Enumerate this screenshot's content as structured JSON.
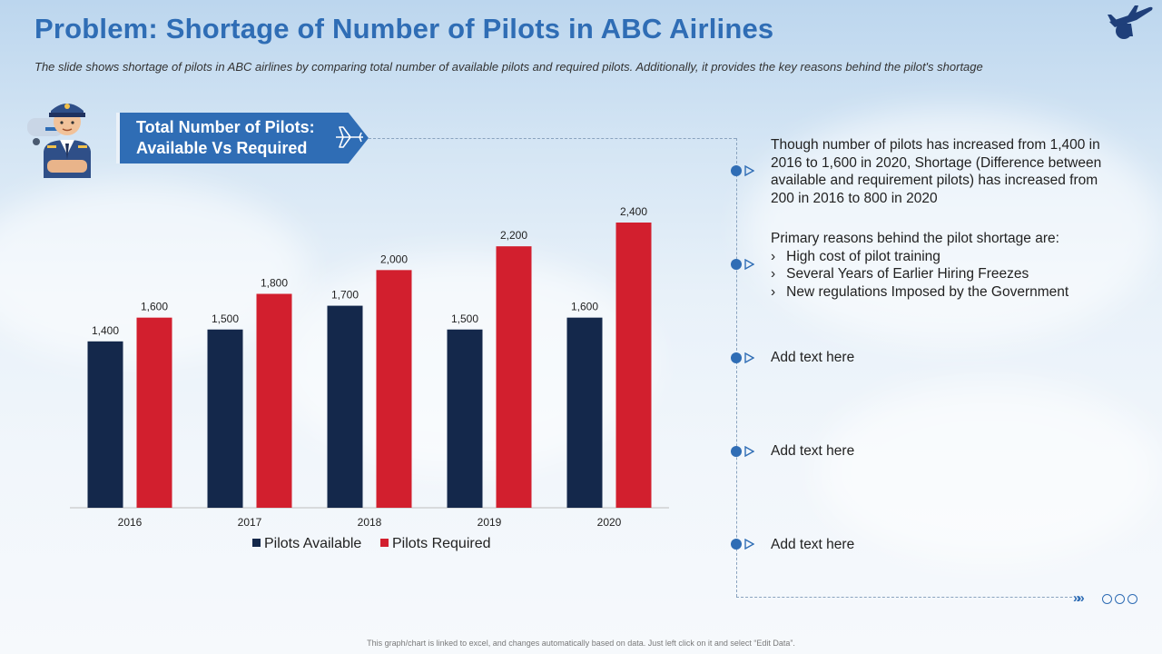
{
  "header": {
    "title": "Problem: Shortage of Number of Pilots in ABC Airlines",
    "subtitle": "The slide shows shortage of pilots in ABC airlines by comparing total number of available pilots and required pilots. Additionally, it provides the key reasons behind the pilot's shortage"
  },
  "banner": {
    "line1": "Total Number of Pilots:",
    "line2": "Available Vs Required"
  },
  "chart_data": {
    "type": "bar",
    "categories": [
      "2016",
      "2017",
      "2018",
      "2019",
      "2020"
    ],
    "series": [
      {
        "name": "Pilots Available",
        "values": [
          1400,
          1500,
          1700,
          1500,
          1600
        ],
        "labels": [
          "1,400",
          "1,500",
          "1,700",
          "1,500",
          "1,600"
        ],
        "color": "#14284b"
      },
      {
        "name": "Pilots Required",
        "values": [
          1600,
          1800,
          2000,
          2200,
          2400
        ],
        "labels": [
          "1,600",
          "1,800",
          "2,000",
          "2,200",
          "2,400"
        ],
        "color": "#d21f2e"
      }
    ],
    "ylim": [
      0,
      2400
    ],
    "grid": false,
    "legend": "bottom-center"
  },
  "points": {
    "p1": "Though number of pilots has increased from 1,400 in 2016 to 1,600 in 2020, Shortage (Difference between available and requirement pilots) has increased from 200 in 2016 to 800 in 2020",
    "p2_intro": "Primary reasons behind the pilot shortage are:",
    "p2_items": [
      "High cost of pilot training",
      "Several Years of Earlier Hiring Freezes",
      "New regulations Imposed by the Government"
    ],
    "p3": "Add text here",
    "p4": "Add text here",
    "p5": "Add text here"
  },
  "footer": "This graph/chart is linked to excel, and changes automatically based on data. Just left click on it and select “Edit Data”.",
  "colors": {
    "accent": "#2f6db5",
    "available": "#14284b",
    "required": "#d21f2e"
  },
  "icons": {
    "logo": "airplane-globe-icon",
    "pilot": "pilot-avatar-icon",
    "banner": "airplane-icon"
  }
}
